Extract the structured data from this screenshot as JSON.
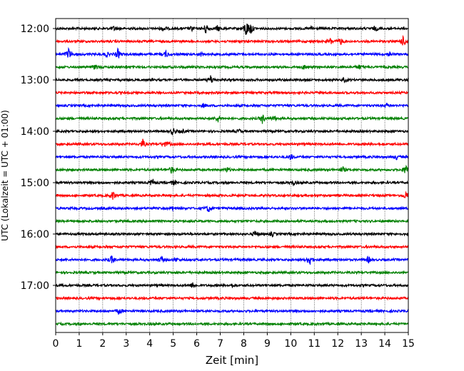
{
  "chart_data": {
    "type": "line",
    "title": "",
    "xlabel": "Zeit  [min]",
    "ylabel": "UTC (Lokalzeit = UTC + 01:00)",
    "xlim": [
      0,
      15
    ],
    "x_ticks": [
      "0",
      "1",
      "2",
      "3",
      "4",
      "5",
      "6",
      "7",
      "8",
      "9",
      "10",
      "11",
      "12",
      "13",
      "14",
      "15"
    ],
    "y_tick_labels": [
      "12:00",
      "13:00",
      "14:00",
      "15:00",
      "16:00",
      "17:00"
    ],
    "grid_x": true,
    "trace_interval_minutes": 15,
    "start": "12:00",
    "colors": [
      "#000000",
      "#ff0000",
      "#0000ff",
      "#008000"
    ],
    "traces": [
      {
        "start": "12:00",
        "color": "#000000",
        "events": [
          [
            2.5,
            0.4
          ],
          [
            4.6,
            0.5
          ],
          [
            5.8,
            0.4
          ],
          [
            6.4,
            0.9
          ],
          [
            6.9,
            0.5
          ],
          [
            8.1,
            1.4
          ],
          [
            8.3,
            0.9
          ],
          [
            10.9,
            0.3
          ],
          [
            13.6,
            0.4
          ]
        ]
      },
      {
        "start": "12:15",
        "color": "#ff0000",
        "events": [
          [
            11.7,
            0.5
          ],
          [
            12.1,
            0.6
          ],
          [
            14.8,
            0.9
          ]
        ]
      },
      {
        "start": "12:30",
        "color": "#0000ff",
        "events": [
          [
            0.55,
            1.0
          ],
          [
            2.15,
            0.4
          ],
          [
            2.65,
            0.8
          ],
          [
            4.7,
            0.5
          ],
          [
            6.2,
            0.3
          ],
          [
            14.2,
            0.4
          ]
        ]
      },
      {
        "start": "12:45",
        "color": "#008000",
        "events": [
          [
            1.7,
            0.5
          ],
          [
            10.6,
            0.4
          ],
          [
            12.9,
            0.4
          ]
        ]
      },
      {
        "start": "13:00",
        "color": "#000000",
        "events": [
          [
            6.6,
            0.8
          ],
          [
            12.3,
            0.3
          ]
        ]
      },
      {
        "start": "13:15",
        "color": "#ff0000",
        "events": []
      },
      {
        "start": "13:30",
        "color": "#0000ff",
        "events": [
          [
            6.3,
            0.3
          ],
          [
            14.1,
            0.3
          ]
        ]
      },
      {
        "start": "13:45",
        "color": "#008000",
        "events": [
          [
            6.9,
            0.6
          ],
          [
            8.8,
            0.8
          ],
          [
            9.3,
            0.4
          ]
        ]
      },
      {
        "start": "14:00",
        "color": "#000000",
        "events": [
          [
            5.0,
            0.6
          ],
          [
            5.4,
            0.3
          ],
          [
            7.8,
            0.3
          ]
        ]
      },
      {
        "start": "14:15",
        "color": "#ff0000",
        "events": [
          [
            3.7,
            0.7
          ],
          [
            4.6,
            0.4
          ],
          [
            4.8,
            0.3
          ]
        ]
      },
      {
        "start": "14:30",
        "color": "#0000ff",
        "events": [
          [
            10.0,
            0.5
          ],
          [
            14.5,
            0.3
          ]
        ]
      },
      {
        "start": "14:45",
        "color": "#008000",
        "events": [
          [
            4.95,
            0.7
          ],
          [
            7.3,
            0.4
          ],
          [
            12.2,
            0.5
          ],
          [
            14.9,
            1.0
          ]
        ]
      },
      {
        "start": "15:00",
        "color": "#000000",
        "events": [
          [
            4.1,
            0.6
          ],
          [
            5.0,
            0.4
          ],
          [
            10.1,
            0.4
          ]
        ]
      },
      {
        "start": "15:15",
        "color": "#ff0000",
        "events": [
          [
            2.45,
            0.8
          ],
          [
            14.9,
            0.6
          ]
        ]
      },
      {
        "start": "15:30",
        "color": "#0000ff",
        "events": [
          [
            5.0,
            0.3
          ],
          [
            6.5,
            0.6
          ]
        ]
      },
      {
        "start": "15:45",
        "color": "#008000",
        "events": []
      },
      {
        "start": "16:00",
        "color": "#000000",
        "events": [
          [
            8.5,
            0.6
          ],
          [
            9.2,
            0.3
          ]
        ]
      },
      {
        "start": "16:15",
        "color": "#ff0000",
        "events": []
      },
      {
        "start": "16:30",
        "color": "#0000ff",
        "events": [
          [
            2.4,
            0.7
          ],
          [
            4.5,
            0.5
          ],
          [
            5.1,
            0.4
          ],
          [
            10.8,
            1.0
          ],
          [
            13.3,
            0.5
          ]
        ]
      },
      {
        "start": "16:45",
        "color": "#008000",
        "events": []
      },
      {
        "start": "17:00",
        "color": "#000000",
        "events": [
          [
            5.85,
            0.6
          ],
          [
            7.5,
            0.3
          ]
        ]
      },
      {
        "start": "17:15",
        "color": "#ff0000",
        "events": []
      },
      {
        "start": "17:30",
        "color": "#0000ff",
        "events": [
          [
            2.7,
            0.6
          ]
        ]
      },
      {
        "start": "17:45",
        "color": "#008000",
        "events": []
      }
    ]
  }
}
